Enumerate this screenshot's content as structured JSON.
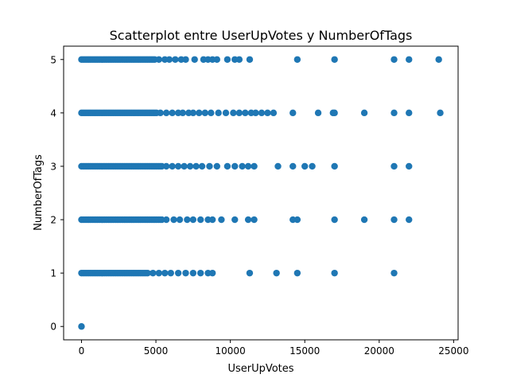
{
  "chart_data": {
    "type": "scatter",
    "title": "Scatterplot entre UserUpVotes y NumberOfTags",
    "xlabel": "UserUpVotes",
    "ylabel": "NumberOfTags",
    "xlim": [
      -1200,
      25300
    ],
    "ylim": [
      -0.25,
      5.25
    ],
    "x_ticks": [
      0,
      5000,
      10000,
      15000,
      20000,
      25000
    ],
    "x_tick_labels": [
      "0",
      "5000",
      "10000",
      "15000",
      "20000",
      "25000"
    ],
    "y_ticks": [
      0,
      1,
      2,
      3,
      4,
      5
    ],
    "y_tick_labels": [
      "0",
      "1",
      "2",
      "3",
      "4",
      "5"
    ],
    "grid": false,
    "marker_color": "#1f77b4",
    "dense_ranges": [
      {
        "y": 5,
        "x_from": 0,
        "x_to": 5000
      },
      {
        "y": 4,
        "x_from": 0,
        "x_to": 5100
      },
      {
        "y": 3,
        "x_from": 0,
        "x_to": 5500
      },
      {
        "y": 2,
        "x_from": 0,
        "x_to": 5500
      },
      {
        "y": 1,
        "x_from": 0,
        "x_to": 4500
      }
    ],
    "points": [
      {
        "x": 0,
        "y": 0
      },
      {
        "x": 5200,
        "y": 5
      },
      {
        "x": 5600,
        "y": 5
      },
      {
        "x": 5900,
        "y": 5
      },
      {
        "x": 6300,
        "y": 5
      },
      {
        "x": 6700,
        "y": 5
      },
      {
        "x": 7000,
        "y": 5
      },
      {
        "x": 7600,
        "y": 5
      },
      {
        "x": 8200,
        "y": 5
      },
      {
        "x": 8500,
        "y": 5
      },
      {
        "x": 8800,
        "y": 5
      },
      {
        "x": 9100,
        "y": 5
      },
      {
        "x": 9800,
        "y": 5
      },
      {
        "x": 10300,
        "y": 5
      },
      {
        "x": 10600,
        "y": 5
      },
      {
        "x": 11300,
        "y": 5
      },
      {
        "x": 14500,
        "y": 5
      },
      {
        "x": 17000,
        "y": 5
      },
      {
        "x": 21000,
        "y": 5
      },
      {
        "x": 22000,
        "y": 5
      },
      {
        "x": 24000,
        "y": 5
      },
      {
        "x": 5300,
        "y": 4
      },
      {
        "x": 5700,
        "y": 4
      },
      {
        "x": 6100,
        "y": 4
      },
      {
        "x": 6500,
        "y": 4
      },
      {
        "x": 6800,
        "y": 4
      },
      {
        "x": 7200,
        "y": 4
      },
      {
        "x": 7500,
        "y": 4
      },
      {
        "x": 7900,
        "y": 4
      },
      {
        "x": 8300,
        "y": 4
      },
      {
        "x": 8700,
        "y": 4
      },
      {
        "x": 9200,
        "y": 4
      },
      {
        "x": 9700,
        "y": 4
      },
      {
        "x": 10200,
        "y": 4
      },
      {
        "x": 10600,
        "y": 4
      },
      {
        "x": 11000,
        "y": 4
      },
      {
        "x": 11400,
        "y": 4
      },
      {
        "x": 11700,
        "y": 4
      },
      {
        "x": 12100,
        "y": 4
      },
      {
        "x": 12500,
        "y": 4
      },
      {
        "x": 12900,
        "y": 4
      },
      {
        "x": 14200,
        "y": 4
      },
      {
        "x": 15900,
        "y": 4
      },
      {
        "x": 16900,
        "y": 4
      },
      {
        "x": 17000,
        "y": 4
      },
      {
        "x": 19000,
        "y": 4
      },
      {
        "x": 21000,
        "y": 4
      },
      {
        "x": 22000,
        "y": 4
      },
      {
        "x": 24100,
        "y": 4
      },
      {
        "x": 5700,
        "y": 3
      },
      {
        "x": 6100,
        "y": 3
      },
      {
        "x": 6500,
        "y": 3
      },
      {
        "x": 6900,
        "y": 3
      },
      {
        "x": 7300,
        "y": 3
      },
      {
        "x": 7700,
        "y": 3
      },
      {
        "x": 8100,
        "y": 3
      },
      {
        "x": 8600,
        "y": 3
      },
      {
        "x": 9100,
        "y": 3
      },
      {
        "x": 9800,
        "y": 3
      },
      {
        "x": 10300,
        "y": 3
      },
      {
        "x": 10800,
        "y": 3
      },
      {
        "x": 11200,
        "y": 3
      },
      {
        "x": 11600,
        "y": 3
      },
      {
        "x": 13200,
        "y": 3
      },
      {
        "x": 14200,
        "y": 3
      },
      {
        "x": 15000,
        "y": 3
      },
      {
        "x": 15500,
        "y": 3
      },
      {
        "x": 17000,
        "y": 3
      },
      {
        "x": 21000,
        "y": 3
      },
      {
        "x": 22000,
        "y": 3
      },
      {
        "x": 5700,
        "y": 2
      },
      {
        "x": 6200,
        "y": 2
      },
      {
        "x": 6600,
        "y": 2
      },
      {
        "x": 7100,
        "y": 2
      },
      {
        "x": 7500,
        "y": 2
      },
      {
        "x": 8000,
        "y": 2
      },
      {
        "x": 8500,
        "y": 2
      },
      {
        "x": 8800,
        "y": 2
      },
      {
        "x": 9400,
        "y": 2
      },
      {
        "x": 10300,
        "y": 2
      },
      {
        "x": 11200,
        "y": 2
      },
      {
        "x": 11600,
        "y": 2
      },
      {
        "x": 14200,
        "y": 2
      },
      {
        "x": 14500,
        "y": 2
      },
      {
        "x": 17000,
        "y": 2
      },
      {
        "x": 19000,
        "y": 2
      },
      {
        "x": 21000,
        "y": 2
      },
      {
        "x": 22000,
        "y": 2
      },
      {
        "x": 4800,
        "y": 1
      },
      {
        "x": 5200,
        "y": 1
      },
      {
        "x": 5600,
        "y": 1
      },
      {
        "x": 6000,
        "y": 1
      },
      {
        "x": 6500,
        "y": 1
      },
      {
        "x": 7000,
        "y": 1
      },
      {
        "x": 7500,
        "y": 1
      },
      {
        "x": 8000,
        "y": 1
      },
      {
        "x": 8500,
        "y": 1
      },
      {
        "x": 8800,
        "y": 1
      },
      {
        "x": 11300,
        "y": 1
      },
      {
        "x": 13100,
        "y": 1
      },
      {
        "x": 14500,
        "y": 1
      },
      {
        "x": 17000,
        "y": 1
      },
      {
        "x": 21000,
        "y": 1
      }
    ]
  }
}
